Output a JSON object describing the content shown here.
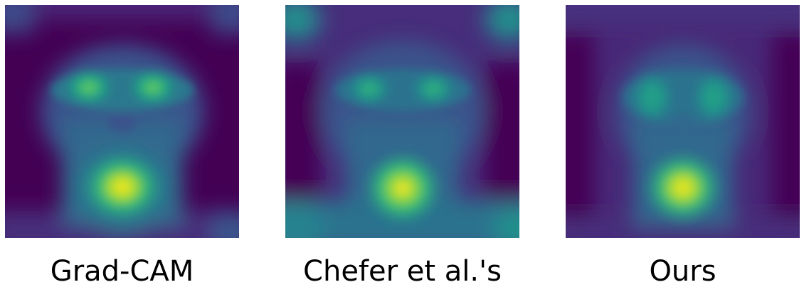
{
  "figure": {
    "colormap": "viridis",
    "panels": [
      {
        "caption": "Grad-CAM"
      },
      {
        "caption": "Chefer et al.'s"
      },
      {
        "caption": "Ours"
      }
    ]
  },
  "colors": {
    "background": "#ffffff",
    "low": "#440154",
    "mid_low": "#3b528b",
    "mid": "#21918c",
    "mid_high": "#5ec962",
    "high": "#fde725"
  }
}
